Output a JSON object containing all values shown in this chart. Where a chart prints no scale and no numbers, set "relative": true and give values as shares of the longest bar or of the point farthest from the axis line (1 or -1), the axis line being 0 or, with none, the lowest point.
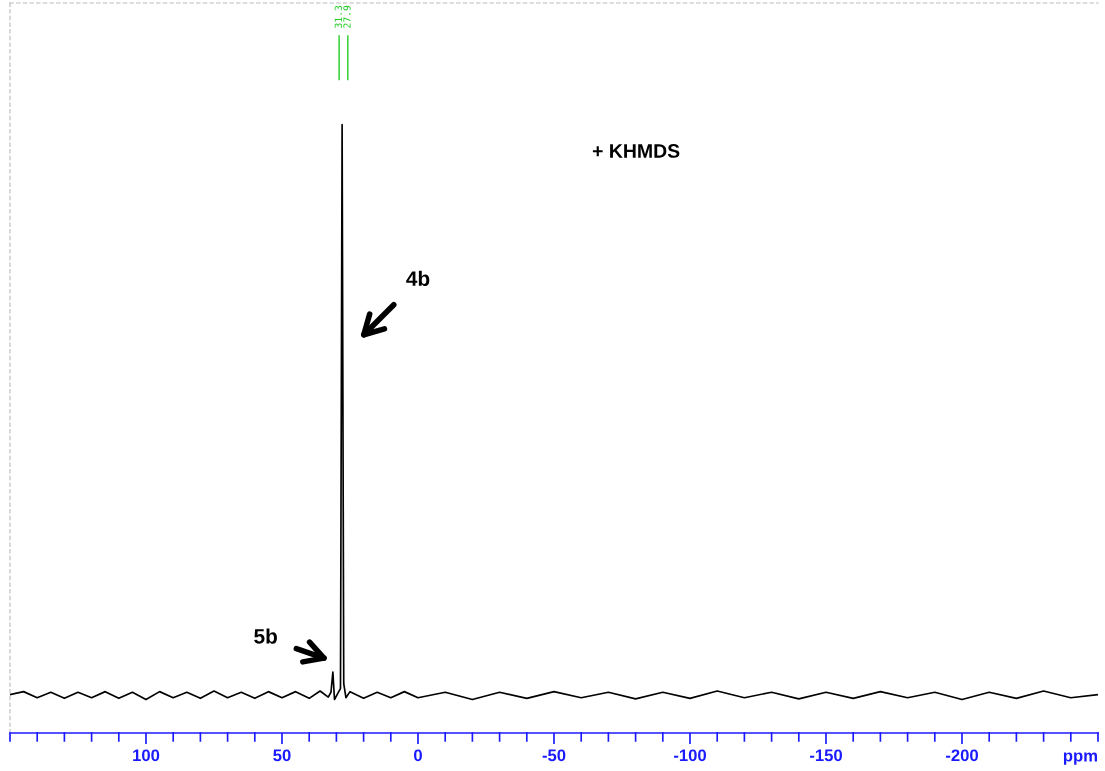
{
  "chart_data": {
    "type": "line",
    "relative": true,
    "xlabel": "ppm",
    "xlim": [
      150,
      -250
    ],
    "xticks": [
      {
        "value": 150,
        "label": null
      },
      {
        "value": 140,
        "label": null
      },
      {
        "value": 130,
        "label": null
      },
      {
        "value": 120,
        "label": null
      },
      {
        "value": 110,
        "label": null
      },
      100,
      {
        "value": 90,
        "label": null
      },
      {
        "value": 80,
        "label": null
      },
      {
        "value": 70,
        "label": null
      },
      {
        "value": 60,
        "label": null
      },
      50,
      {
        "value": 40,
        "label": null
      },
      {
        "value": 30,
        "label": null
      },
      {
        "value": 20,
        "label": null
      },
      {
        "value": 10,
        "label": null
      },
      0,
      {
        "value": -10,
        "label": null
      },
      {
        "value": -20,
        "label": null
      },
      {
        "value": -30,
        "label": null
      },
      {
        "value": -40,
        "label": null
      },
      -50,
      {
        "value": -60,
        "label": null
      },
      {
        "value": -70,
        "label": null
      },
      {
        "value": -80,
        "label": null
      },
      {
        "value": -90,
        "label": null
      },
      -100,
      {
        "value": -110,
        "label": null
      },
      {
        "value": -120,
        "label": null
      },
      {
        "value": -130,
        "label": null
      },
      {
        "value": -140,
        "label": null
      },
      -150,
      {
        "value": -160,
        "label": null
      },
      {
        "value": -170,
        "label": null
      },
      {
        "value": -180,
        "label": null
      },
      {
        "value": -190,
        "label": null
      },
      -200,
      {
        "value": -210,
        "label": null
      },
      {
        "value": -220,
        "label": null
      },
      {
        "value": -230,
        "label": null
      },
      {
        "value": -240,
        "label": null
      },
      {
        "value": -250,
        "label": null
      }
    ],
    "tick_labels": "x",
    "series": [
      {
        "color": "#000000",
        "x": [
          150,
          145,
          140,
          135,
          130,
          125,
          120,
          115,
          110,
          105,
          100,
          95,
          90,
          85,
          80,
          75,
          70,
          65,
          60,
          55,
          50,
          45,
          40,
          36,
          33,
          32,
          31.3,
          30.7,
          29.5,
          28.5,
          27.9,
          27.3,
          26.5,
          25,
          20,
          15,
          10,
          5,
          0,
          -10,
          -20,
          -30,
          -40,
          -50,
          -60,
          -70,
          -80,
          -90,
          -100,
          -110,
          -120,
          -130,
          -140,
          -150,
          -160,
          -170,
          -180,
          -190,
          -200,
          -210,
          -220,
          -230,
          -240,
          -250
        ],
        "values": [
          0.063,
          0.068,
          0.058,
          0.067,
          0.057,
          0.067,
          0.058,
          0.068,
          0.057,
          0.067,
          0.055,
          0.068,
          0.058,
          0.067,
          0.057,
          0.069,
          0.058,
          0.067,
          0.057,
          0.068,
          0.058,
          0.068,
          0.057,
          0.069,
          0.059,
          0.067,
          0.1,
          0.055,
          0.065,
          0.073,
          1.0,
          0.081,
          0.058,
          0.068,
          0.057,
          0.067,
          0.058,
          0.068,
          0.058,
          0.067,
          0.055,
          0.067,
          0.057,
          0.068,
          0.058,
          0.067,
          0.056,
          0.067,
          0.057,
          0.069,
          0.058,
          0.067,
          0.056,
          0.067,
          0.057,
          0.068,
          0.058,
          0.067,
          0.055,
          0.067,
          0.057,
          0.069,
          0.058,
          0.063
        ]
      }
    ],
    "annotations": [
      "31.3",
      "27.9",
      "+ KHMDS",
      "4b",
      "5b"
    ]
  }
}
